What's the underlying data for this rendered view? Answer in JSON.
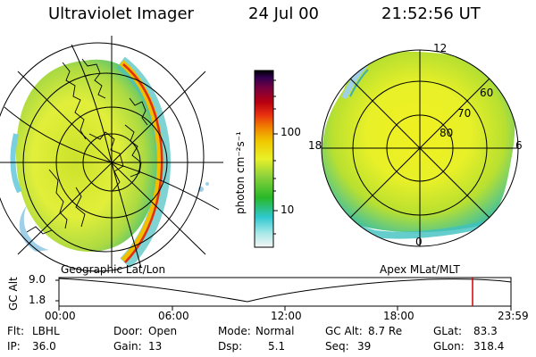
{
  "header": {
    "instrument": "Ultraviolet Imager",
    "date": "24 Jul 00",
    "time": "21:52:56 UT"
  },
  "colorbar": {
    "unit_label": "photon cm⁻²s⁻¹",
    "ticks": [
      "100",
      "10"
    ]
  },
  "left_map": {
    "caption": "Geographic Lat/Lon"
  },
  "right_map": {
    "caption": "Apex MLat/MLT",
    "mlt_labels": [
      "12",
      "18",
      "6",
      "0"
    ],
    "lat_labels": [
      "60",
      "70",
      "80"
    ]
  },
  "altitude_plot": {
    "ylabel": "GC Alt",
    "yticks": [
      "9.0",
      "1.8"
    ],
    "xticks": [
      "00:00",
      "06:00",
      "12:00",
      "18:00",
      "23:59"
    ],
    "current_time_fraction": 0.915
  },
  "info": {
    "row1": [
      {
        "label": "Flt:",
        "value": "LBHL"
      },
      {
        "label": "Door:",
        "value": "Open"
      },
      {
        "label": "Mode:",
        "value": "Normal"
      },
      {
        "label": "GC Alt:",
        "value": "8.7 Re"
      },
      {
        "label": "GLat:",
        "value": "83.3"
      }
    ],
    "row2": [
      {
        "label": "IP:",
        "value": "36.0"
      },
      {
        "label": "Gain:",
        "value": "13"
      },
      {
        "label": "Dsp:",
        "value": "5.1"
      },
      {
        "label": "Seq:",
        "value": "39"
      },
      {
        "label": "GLon:",
        "value": "318.4"
      }
    ]
  },
  "colors": {
    "marker": "#d40000",
    "colorbar_stops": [
      "#f5f5f5",
      "#88e0e0",
      "#30c8d0",
      "#28b828",
      "#8cd23c",
      "#e8f028",
      "#f0c800",
      "#f08000",
      "#e83010",
      "#b80010",
      "#780040",
      "#300050",
      "#000000"
    ]
  }
}
